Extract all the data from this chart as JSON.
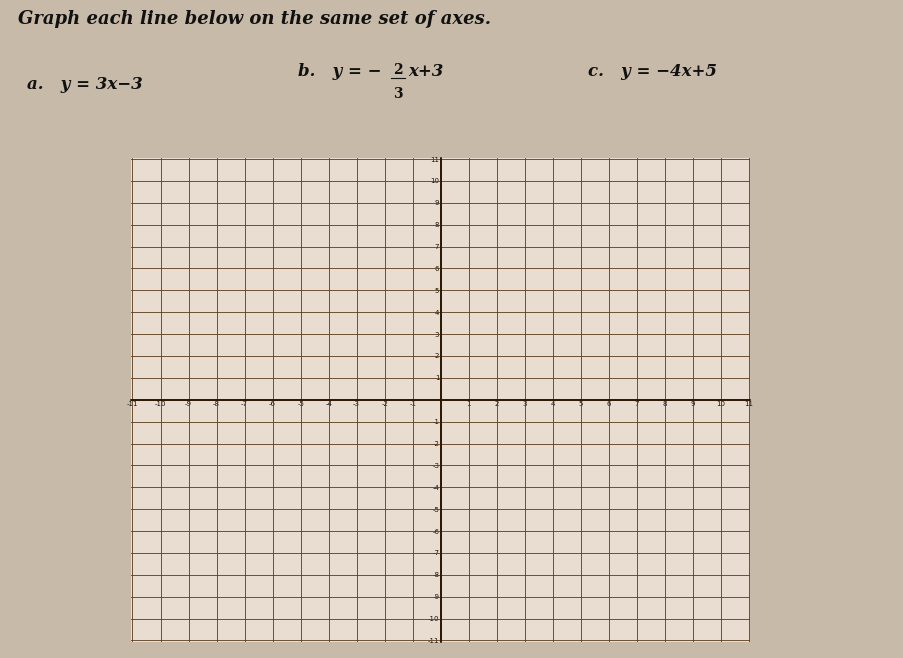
{
  "title": "Graph each line below on the same set of axes.",
  "eq_a": "a.    y = 3x−3",
  "eq_c": "c.    y = −4x+5",
  "xmin": -11,
  "xmax": 11,
  "ymin": -11,
  "ymax": 11,
  "grid_color": "#5a3a1a",
  "axis_color": "#2a1500",
  "bg_color": "#e8ddd0",
  "page_bg": "#c8baa8",
  "text_color": "#111111",
  "title_fontsize": 13,
  "label_fontsize": 12
}
